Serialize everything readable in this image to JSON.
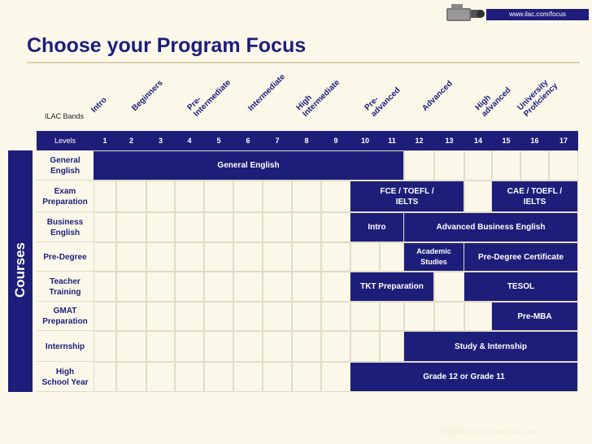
{
  "header": {
    "url": "www.ilac.com/focus"
  },
  "title": "Choose your Program Focus",
  "bands_label": "ILAC Bands",
  "levels_label": "Levels",
  "side_label": "Courses",
  "bands": [
    {
      "text": "Intro"
    },
    {
      "text": "Beginners"
    },
    {
      "text": "Pre-\nIntermediate"
    },
    {
      "text": "Intermediate"
    },
    {
      "text": "High\nIntermediate"
    },
    {
      "text": "Pre-\nadvanced"
    },
    {
      "text": "Advanced"
    },
    {
      "text": "High\nadvanced"
    },
    {
      "text": "University\nProficiency"
    }
  ],
  "levels": [
    "1",
    "2",
    "3",
    "4",
    "5",
    "6",
    "7",
    "8",
    "9",
    "10",
    "11",
    "12",
    "13",
    "14",
    "15",
    "16",
    "17"
  ],
  "rows": [
    {
      "label": "General\nEnglish",
      "bars": [
        {
          "text": "General English",
          "from": 1,
          "to": 11
        }
      ]
    },
    {
      "label": "Exam\nPreparation",
      "bars": [
        {
          "text": "FCE / TOEFL /\nIELTS",
          "from": 10,
          "to": 13
        },
        {
          "text": "CAE / TOEFL /\nIELTS",
          "from": 15,
          "to": 17
        }
      ]
    },
    {
      "label": "Business\nEnglish",
      "bars": [
        {
          "text": "Intro",
          "from": 10,
          "to": 11
        },
        {
          "text": "Advanced Business English",
          "from": 12,
          "to": 17
        }
      ]
    },
    {
      "label": "Pre-Degree",
      "bars": [
        {
          "text": "Academic\nStudies",
          "from": 12,
          "to": 13
        },
        {
          "text": "Pre-Degree Certificate",
          "from": 14,
          "to": 17
        }
      ]
    },
    {
      "label": "Teacher\nTraining",
      "bars": [
        {
          "text": "TKT Preparation",
          "from": 10,
          "to": 12
        },
        {
          "text": "TESOL",
          "from": 14,
          "to": 17
        }
      ]
    },
    {
      "label": "GMAT\nPreparation",
      "bars": [
        {
          "text": "Pre-MBA",
          "from": 15,
          "to": 17
        }
      ]
    },
    {
      "label": "Internship",
      "bars": [
        {
          "text": "Study & Internship",
          "from": 12,
          "to": 17
        }
      ]
    },
    {
      "label": "High\nSchool Year",
      "bars": [
        {
          "text": "Grade 12 or Grade 11",
          "from": 10,
          "to": 17
        }
      ]
    }
  ],
  "footer": "info@ilac.com   www.ilac.com"
}
